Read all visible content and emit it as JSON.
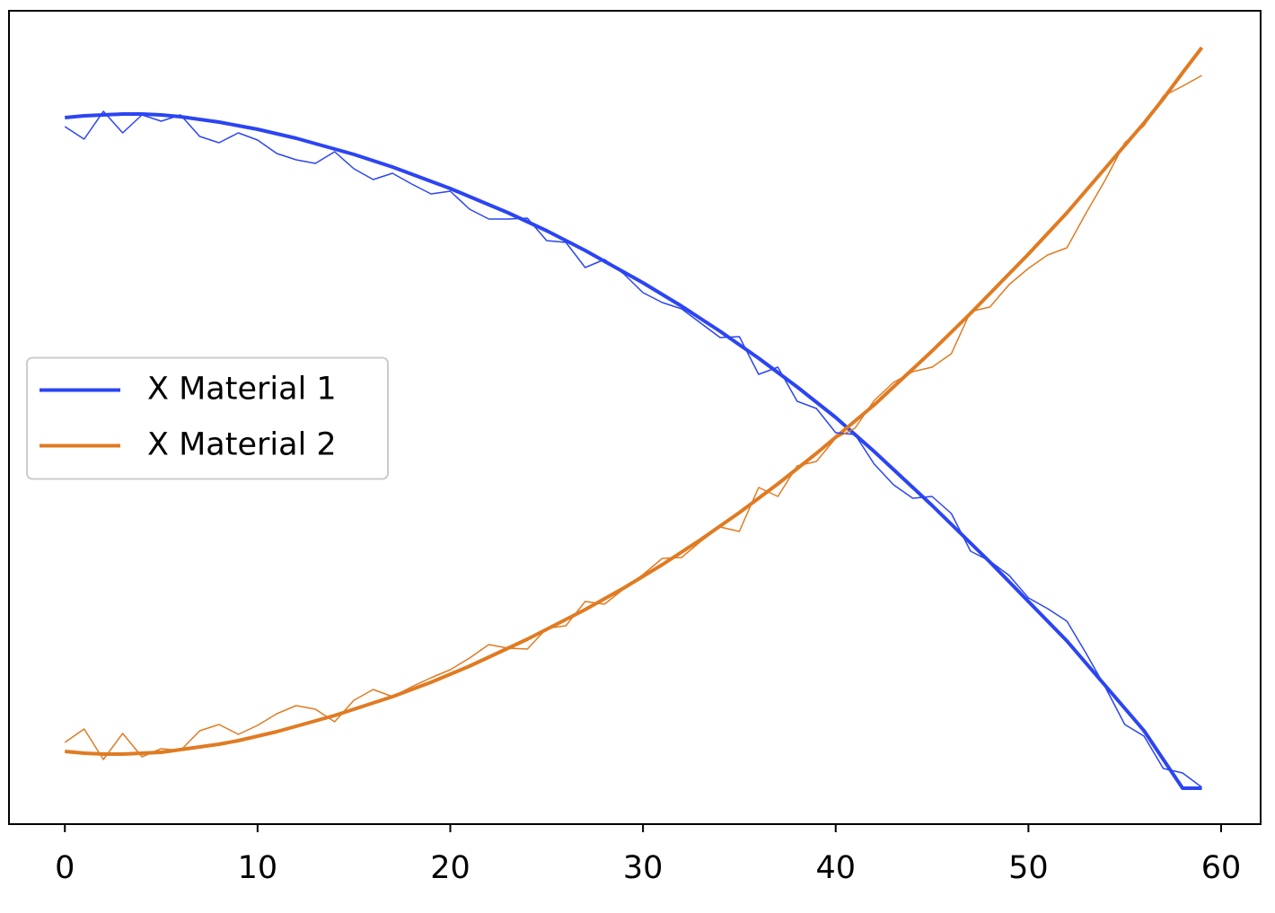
{
  "chart_data": {
    "type": "line",
    "x": [
      0,
      1,
      2,
      3,
      4,
      5,
      6,
      7,
      8,
      9,
      10,
      11,
      12,
      13,
      14,
      15,
      16,
      17,
      18,
      19,
      20,
      21,
      22,
      23,
      24,
      25,
      26,
      27,
      28,
      29,
      30,
      31,
      32,
      33,
      34,
      35,
      36,
      37,
      38,
      39,
      40,
      41,
      42,
      43,
      44,
      45,
      46,
      47,
      48,
      49,
      50,
      51,
      52,
      53,
      54,
      55,
      56,
      57,
      58,
      59
    ],
    "series": [
      {
        "name": "X Material 1",
        "color": "#2b45f2",
        "linewidth": 4,
        "values": [
          787,
          789,
          790,
          791,
          791,
          790,
          788,
          785,
          782,
          778,
          774,
          769,
          764,
          758,
          752,
          746,
          739,
          732,
          724,
          716,
          708,
          699,
          690,
          681,
          671,
          661,
          650,
          639,
          627,
          615,
          603,
          590,
          577,
          563,
          549,
          534,
          519,
          503,
          487,
          470,
          453,
          434,
          415,
          395,
          375,
          355,
          334,
          313,
          292,
          270,
          248,
          226,
          204,
          179,
          154,
          129,
          104,
          72,
          40,
          40
        ]
      },
      {
        "name": "X Material 2",
        "color": "#e07b22",
        "linewidth": 4,
        "values": [
          81,
          79,
          78,
          78,
          79,
          80,
          83,
          86,
          89,
          93,
          98,
          103,
          109,
          115,
          121,
          128,
          135,
          142,
          150,
          158,
          167,
          176,
          186,
          196,
          206,
          217,
          228,
          239,
          251,
          263,
          276,
          289,
          303,
          317,
          332,
          347,
          363,
          379,
          396,
          413,
          431,
          449,
          467,
          487,
          507,
          527,
          548,
          569,
          591,
          613,
          635,
          658,
          681,
          706,
          731,
          756,
          781,
          808,
          837,
          865
        ]
      },
      {
        "color": "#2b45f2",
        "linewidth": 1.5,
        "values": [
          777,
          763,
          794,
          770,
          790,
          783,
          790,
          766,
          759,
          770,
          762,
          747,
          740,
          736,
          749,
          730,
          718,
          725,
          713,
          702,
          705,
          685,
          674,
          674,
          675,
          650,
          648,
          620,
          629,
          613,
          592,
          581,
          574,
          558,
          542,
          543,
          501,
          509,
          471,
          463,
          436,
          434,
          401,
          378,
          363,
          365,
          346,
          304,
          293,
          277,
          252,
          240,
          226,
          190,
          152,
          111,
          98,
          62,
          57,
          41
        ]
      },
      {
        "color": "#e07b22",
        "linewidth": 1.5,
        "values": [
          91,
          106,
          72,
          101,
          75,
          84,
          82,
          104,
          111,
          100,
          110,
          123,
          132,
          128,
          114,
          138,
          150,
          142,
          153,
          163,
          172,
          185,
          200,
          196,
          195,
          218,
          221,
          248,
          245,
          262,
          278,
          296,
          297,
          315,
          331,
          326,
          375,
          365,
          399,
          404,
          430,
          441,
          472,
          492,
          504,
          509,
          524,
          571,
          576,
          601,
          619,
          634,
          642,
          681,
          718,
          759,
          778,
          811,
          822,
          834
        ]
      }
    ],
    "xlim": [
      -2.9,
      62.05
    ],
    "xticks": [
      0,
      10,
      20,
      30,
      40,
      50,
      60
    ],
    "ylim": [
      0,
      906
    ],
    "legend": "center left"
  }
}
